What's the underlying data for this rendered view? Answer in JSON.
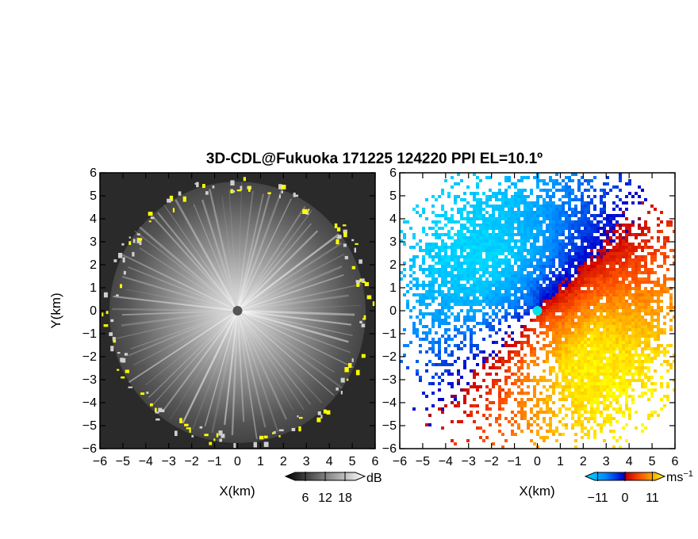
{
  "figure": {
    "title": "3D-CDL@Fukuoka 171225 124220 PPI EL=10.1º"
  },
  "chart_data": [
    {
      "type": "heatmap",
      "panel": "left",
      "quantity_unit": "dB",
      "xlabel": "X(km)",
      "ylabel": "Y(km)",
      "xlim": [
        -6,
        6
      ],
      "ylim": [
        -6,
        6
      ],
      "x_ticks": [
        "−6",
        "−5",
        "−4",
        "−3",
        "−2",
        "−1",
        "0",
        "1",
        "2",
        "3",
        "4",
        "5",
        "6"
      ],
      "y_ticks": [
        "6",
        "5",
        "4",
        "3",
        "2",
        "1",
        "0",
        "−1",
        "−2",
        "−3",
        "−4",
        "−5",
        "−6"
      ],
      "colorbar": {
        "unit": "dB",
        "ticks": [
          "6",
          "12",
          "18"
        ],
        "tick_values": [
          6,
          12,
          18
        ],
        "range": [
          0,
          24
        ],
        "colormap": "grayscale",
        "colors": [
          "#000000",
          "#ffffff"
        ],
        "highlight_color": "#ffff00"
      },
      "features": {
        "echo_radius_km": 5.7,
        "center_marker_color": "#555555"
      }
    },
    {
      "type": "heatmap",
      "panel": "right",
      "quantity_unit": "ms⁻¹",
      "xlabel": "X(km)",
      "xlim": [
        -6,
        6
      ],
      "ylim": [
        -6,
        6
      ],
      "x_ticks": [
        "−6",
        "−5",
        "−4",
        "−3",
        "−2",
        "−1",
        "0",
        "1",
        "2",
        "3",
        "4",
        "5",
        "6"
      ],
      "y_ticks": [
        "6",
        "5",
        "4",
        "3",
        "2",
        "1",
        "0",
        "−1",
        "−2",
        "−3",
        "−4",
        "−5",
        "−6"
      ],
      "colorbar": {
        "unit_base": "ms",
        "unit_exp": "−1",
        "ticks": [
          "−11",
          "0",
          "11"
        ],
        "tick_values": [
          -11,
          0,
          11
        ],
        "range": [
          -16,
          16
        ],
        "colormap": "doppler",
        "colors": [
          "#00ddff",
          "#0066ff",
          "#0000cc",
          "#cc0000",
          "#ff5500",
          "#ffaa00",
          "#ffff00"
        ]
      },
      "features": {
        "flow_direction": "toward upper-left (approaching from southeast)",
        "center_marker_color": "#00e5e5"
      }
    }
  ]
}
